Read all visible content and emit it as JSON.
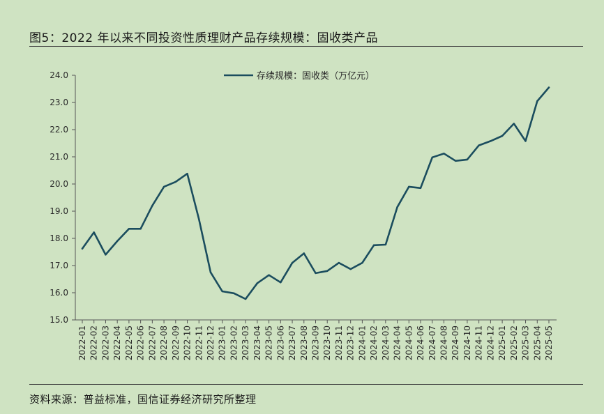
{
  "header": {
    "title": "图5：2022 年以来不同投资性质理财产品存续规模：固收类产品"
  },
  "footer": {
    "source": "资料来源：普益标准，国信证券经济研究所整理"
  },
  "chart_data": {
    "type": "line",
    "title": "图5：2022 年以来不同投资性质理财产品存续规模：固收类产品",
    "xlabel": "",
    "ylabel": "",
    "ylim": [
      15.0,
      24.0
    ],
    "yticks": [
      "15.0",
      "16.0",
      "17.0",
      "18.0",
      "19.0",
      "20.0",
      "21.0",
      "22.0",
      "23.0",
      "24.0"
    ],
    "legend_position": "top-center",
    "grid": false,
    "line_color": "#1b4d5e",
    "x": [
      "2022-01",
      "2022-02",
      "2022-03",
      "2022-04",
      "2022-05",
      "2022-06",
      "2022-07",
      "2022-08",
      "2022-09",
      "2022-10",
      "2022-11",
      "2022-12",
      "2023-01",
      "2023-02",
      "2023-03",
      "2023-04",
      "2023-05",
      "2023-06",
      "2023-07",
      "2023-08",
      "2023-09",
      "2023-10",
      "2023-11",
      "2023-12",
      "2024-01",
      "2024-02",
      "2024-03",
      "2024-04",
      "2024-05",
      "2024-06",
      "2024-07",
      "2024-08",
      "2024-09",
      "2024-10",
      "2024-11",
      "2024-12",
      "2025-01",
      "2025-02",
      "2025-03",
      "2025-04",
      "2025-05"
    ],
    "series": [
      {
        "name": "存续规模：固收类（万亿元）",
        "values": [
          17.62,
          18.22,
          17.4,
          17.9,
          18.35,
          18.35,
          19.2,
          19.9,
          20.08,
          20.38,
          18.7,
          16.75,
          16.05,
          15.98,
          15.77,
          16.35,
          16.65,
          16.38,
          17.1,
          17.45,
          16.72,
          16.8,
          17.1,
          16.87,
          17.1,
          17.75,
          17.77,
          19.15,
          19.9,
          19.85,
          20.98,
          21.12,
          20.85,
          20.9,
          21.42,
          21.58,
          21.77,
          22.22,
          21.58,
          23.05,
          23.55
        ]
      }
    ]
  }
}
